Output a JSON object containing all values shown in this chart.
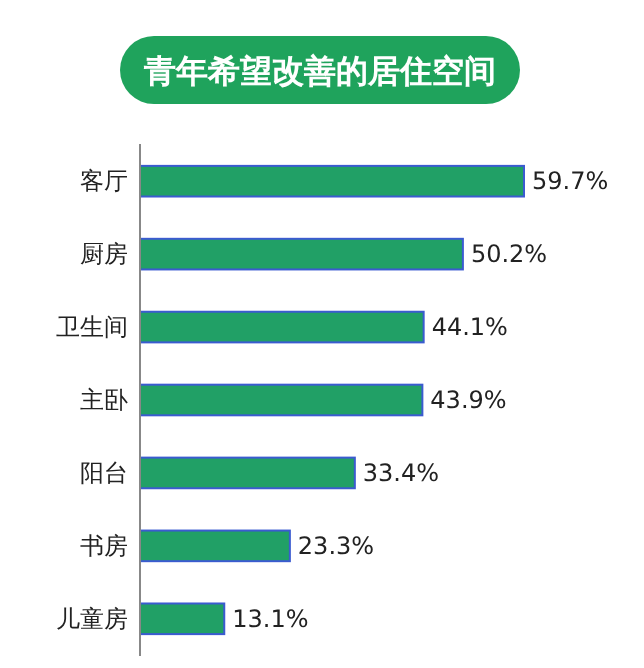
{
  "chart_data": {
    "type": "bar",
    "orientation": "horizontal",
    "title": "青年希望改善的居住空间",
    "categories": [
      "客厅",
      "厨房",
      "卫生间",
      "主卧",
      "阳台",
      "书房",
      "儿童房"
    ],
    "values": [
      59.7,
      50.2,
      44.1,
      43.9,
      33.4,
      23.3,
      13.1
    ],
    "value_labels": [
      "59.7%",
      "50.2%",
      "44.1%",
      "43.9%",
      "33.4%",
      "23.3%",
      "13.1%"
    ],
    "color": "#21a066"
  }
}
